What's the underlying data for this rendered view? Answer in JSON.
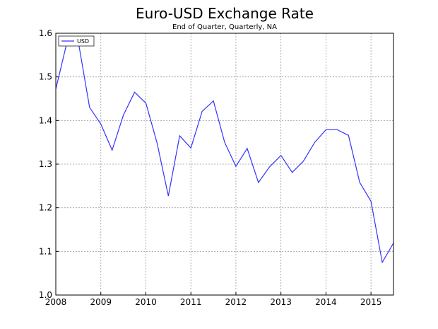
{
  "chart_data": {
    "type": "line",
    "title": "Euro-USD Exchange Rate",
    "subtitle": "End of Quarter, Quarterly, NA",
    "xlabel": "",
    "ylabel": "",
    "xlim": [
      2008.0,
      2015.5
    ],
    "ylim": [
      1.0,
      1.6
    ],
    "x_ticks": [
      {
        "value": 2008,
        "label": "2008"
      },
      {
        "value": 2009,
        "label": "2009"
      },
      {
        "value": 2010,
        "label": "2010"
      },
      {
        "value": 2011,
        "label": "2011"
      },
      {
        "value": 2012,
        "label": "2012"
      },
      {
        "value": 2013,
        "label": "2013"
      },
      {
        "value": 2014,
        "label": "2014"
      },
      {
        "value": 2015,
        "label": "2015"
      }
    ],
    "y_ticks": [
      {
        "value": 1.0,
        "label": "1.0"
      },
      {
        "value": 1.1,
        "label": "1.1"
      },
      {
        "value": 1.2,
        "label": "1.2"
      },
      {
        "value": 1.3,
        "label": "1.3"
      },
      {
        "value": 1.4,
        "label": "1.4"
      },
      {
        "value": 1.5,
        "label": "1.5"
      },
      {
        "value": 1.6,
        "label": "1.6"
      }
    ],
    "grid": true,
    "legend": {
      "position": "top-left"
    },
    "series": [
      {
        "name": "USD",
        "color": "#3333ff",
        "x": [
          2008.0,
          2008.25,
          2008.5,
          2008.75,
          2009.0,
          2009.25,
          2009.5,
          2009.75,
          2010.0,
          2010.25,
          2010.5,
          2010.75,
          2011.0,
          2011.25,
          2011.5,
          2011.75,
          2012.0,
          2012.25,
          2012.5,
          2012.75,
          2013.0,
          2013.25,
          2013.5,
          2013.75,
          2014.0,
          2014.25,
          2014.5,
          2014.75,
          2015.0,
          2015.25,
          2015.5
        ],
        "values": [
          1.472,
          1.58,
          1.58,
          1.43,
          1.392,
          1.332,
          1.412,
          1.465,
          1.44,
          1.348,
          1.227,
          1.365,
          1.337,
          1.421,
          1.445,
          1.35,
          1.295,
          1.336,
          1.258,
          1.294,
          1.32,
          1.281,
          1.307,
          1.35,
          1.379,
          1.379,
          1.366,
          1.258,
          1.215,
          1.075,
          1.119
        ]
      }
    ]
  }
}
